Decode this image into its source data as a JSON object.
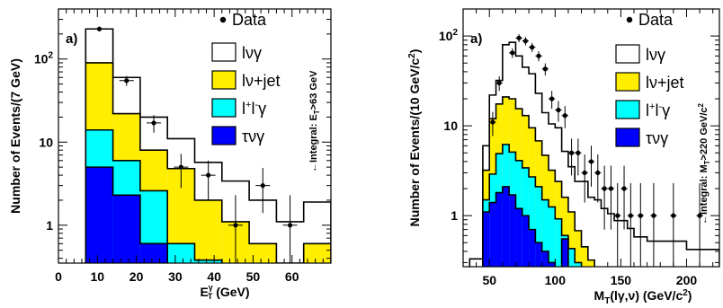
{
  "colors": {
    "lvg_fill": "#ffffff",
    "lvjet_fill": "#ffee00",
    "llg_fill": "#00ffff",
    "tvg_fill": "#0000ff",
    "line": "#000000"
  },
  "legend": {
    "data": "Data",
    "lvg": "lνγ",
    "lvjet": "lν+jet",
    "llg": "l⁺l⁻γ",
    "tvg": "τνγ"
  },
  "chart_data": [
    {
      "type": "histogram",
      "panel_label": "a)",
      "ylabel": "Number of Events/(7 GeV)",
      "xlabel": "E_T^γ (GeV)",
      "ylog": true,
      "xlim": [
        0,
        70
      ],
      "ylim": [
        0.35,
        400
      ],
      "xticks": [
        0,
        10,
        20,
        30,
        40,
        50,
        60
      ],
      "yticks": [
        {
          "v": 1,
          "t": "1"
        },
        {
          "v": 10,
          "t": "10"
        },
        {
          "v": 100,
          "t": "10²"
        }
      ],
      "annotation": "←Integral: E_T>63 GeV",
      "bins": [
        7,
        14,
        21,
        28,
        35,
        42,
        49,
        56,
        63,
        70
      ],
      "stack": {
        "tvg": [
          5,
          2.3,
          0.6,
          0.2,
          0.1,
          0.05,
          0.02,
          0.01,
          0.01
        ],
        "llg": [
          14,
          6,
          2.6,
          0.6,
          0.38,
          0.2,
          0.1,
          0.05,
          0.02
        ],
        "lvjet": [
          90,
          22,
          8,
          4.8,
          2,
          1.1,
          0.6,
          0.35,
          0.6
        ],
        "lvg": [
          230,
          60,
          20,
          11,
          5.7,
          3.4,
          2,
          1.1,
          1.9
        ]
      },
      "data": {
        "x": [
          10.5,
          17.5,
          24.5,
          31.5,
          38.5,
          45.5,
          52.5,
          59.5
        ],
        "y": [
          230,
          55,
          17,
          5,
          4,
          1,
          3,
          1
        ],
        "err_lo": [
          15,
          7.5,
          4,
          2.2,
          2,
          0.83,
          1.6,
          0.83
        ],
        "err_hi": [
          15,
          7.5,
          4.1,
          2.2,
          2,
          1.3,
          1.9,
          1.3
        ]
      }
    },
    {
      "type": "histogram",
      "panel_label": "a)",
      "ylabel": "Number of Events/(10 GeV/c²)",
      "xlabel": "M_T(lγ,ν) (GeV/c²)",
      "ylog": true,
      "xlim": [
        30,
        225
      ],
      "ylim": [
        0.27,
        200
      ],
      "xticks": [
        50,
        100,
        150,
        200
      ],
      "yticks": [
        {
          "v": 1,
          "t": "1"
        },
        {
          "v": 10,
          "t": "10"
        },
        {
          "v": 100,
          "t": "10²"
        }
      ],
      "annotation": "←Integral: M_T>220 GeV/c²",
      "bins": [
        35,
        45,
        50,
        55,
        60,
        65,
        70,
        75,
        80,
        85,
        90,
        95,
        100,
        105,
        110,
        115,
        120,
        125,
        130,
        135,
        140,
        145,
        150,
        155,
        160,
        170,
        180,
        200,
        220,
        225
      ],
      "stack": {
        "tvg": [
          0.1,
          1.1,
          1.4,
          1.8,
          2.1,
          1.7,
          1.2,
          1,
          0.7,
          0.5,
          0.4,
          0.3,
          0.25,
          0.55,
          0.15,
          0.08,
          0.05,
          0.04,
          0.03,
          0.02,
          0.02,
          0.01,
          0.01,
          0.01,
          0.01,
          0.01,
          0.01,
          0.01,
          0.01
        ],
        "llg": [
          0.1,
          1.5,
          2.9,
          4.9,
          6.2,
          5.1,
          4.1,
          3.4,
          2.7,
          2.1,
          1.5,
          1.25,
          0.92,
          0.6,
          0.43,
          0.3,
          0.22,
          0.17,
          0.12,
          0.1,
          0.08,
          0.06,
          0.05,
          0.04,
          0.03,
          0.02,
          0.02,
          0.01,
          0.01
        ],
        "lvjet": [
          0.1,
          3.2,
          12,
          17.5,
          21,
          20,
          15.5,
          13,
          9.5,
          6.8,
          4.7,
          3.2,
          2.4,
          1.6,
          1.1,
          0.68,
          0.45,
          0.32,
          0.23,
          0.17,
          0.13,
          0.1,
          0.07,
          0.05,
          0.04,
          0.03,
          0.02,
          0.02,
          0.02
        ],
        "lvg": [
          0.33,
          6,
          22,
          32,
          80,
          85,
          60,
          45,
          38,
          23,
          14,
          10.5,
          9.5,
          5.2,
          3.5,
          2.4,
          2.4,
          1.6,
          1.5,
          1.2,
          1.05,
          0.88,
          0.88,
          0.72,
          0.58,
          0.52,
          0.52,
          0.42,
          0.42
        ]
      },
      "data": {
        "x": [
          52.5,
          57.5,
          67.5,
          72.5,
          77.5,
          82.5,
          87.5,
          92.5,
          97.5,
          102.5,
          107.5,
          112.5,
          117.5,
          122.5,
          127.5,
          132.5,
          137.5,
          142.5,
          147.5,
          152.5,
          157.5,
          165,
          175,
          190,
          210
        ],
        "y": [
          11,
          30,
          65,
          95,
          88,
          75,
          60,
          43,
          20,
          15,
          13,
          5,
          5,
          3,
          4,
          3,
          2,
          2,
          1,
          2,
          1,
          1,
          1,
          1,
          1
        ],
        "err_lo": [
          3.3,
          5.5,
          8,
          9.7,
          9.4,
          8.7,
          7.7,
          6.6,
          4.5,
          3.9,
          3.6,
          2.2,
          2.2,
          1.6,
          1.9,
          1.6,
          1.3,
          1.3,
          0.83,
          1.3,
          0.83,
          0.83,
          0.83,
          0.83,
          0.83
        ],
        "err_hi": [
          3.3,
          5.5,
          8,
          9.7,
          9.4,
          8.7,
          7.7,
          6.6,
          4.5,
          3.9,
          3.6,
          2.2,
          2.2,
          1.8,
          2,
          1.8,
          1.6,
          1.6,
          1.3,
          1.6,
          1.3,
          1.3,
          1.3,
          1.3,
          1.3
        ]
      }
    }
  ]
}
